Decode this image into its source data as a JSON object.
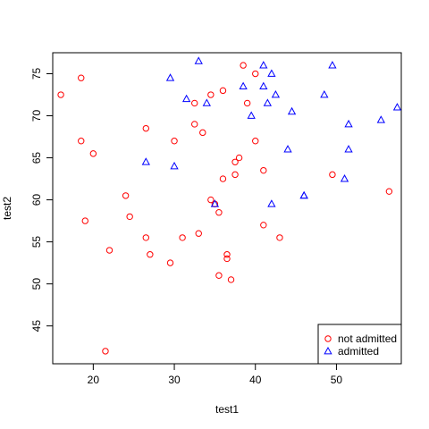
{
  "chart_data": {
    "type": "scatter",
    "title": "",
    "xlabel": "test1",
    "ylabel": "test2",
    "xlim": [
      15,
      58
    ],
    "ylim": [
      40.5,
      77.5
    ],
    "xticks": [
      20,
      30,
      40,
      50
    ],
    "yticks": [
      45,
      50,
      55,
      60,
      65,
      70,
      75
    ],
    "legend": {
      "position": "bottom-right"
    },
    "series": [
      {
        "name": "not admitted",
        "marker": "circle",
        "color": "#ff0000",
        "points": [
          [
            16,
            72.5
          ],
          [
            18.5,
            74.5
          ],
          [
            18.5,
            67
          ],
          [
            20,
            65.5
          ],
          [
            19,
            57.5
          ],
          [
            21.5,
            42
          ],
          [
            22,
            54
          ],
          [
            24,
            60.5
          ],
          [
            24.5,
            58
          ],
          [
            26.5,
            68.5
          ],
          [
            26.5,
            55.5
          ],
          [
            27,
            53.5
          ],
          [
            29.5,
            52.5
          ],
          [
            30,
            67
          ],
          [
            31,
            55.5
          ],
          [
            32.5,
            71.5
          ],
          [
            32.5,
            69
          ],
          [
            33,
            56
          ],
          [
            33.5,
            68
          ],
          [
            34.5,
            72.5
          ],
          [
            34.5,
            60
          ],
          [
            35,
            59.5
          ],
          [
            35.5,
            58.5
          ],
          [
            35.5,
            51
          ],
          [
            36,
            73
          ],
          [
            36,
            62.5
          ],
          [
            36.5,
            53.5
          ],
          [
            36.5,
            53
          ],
          [
            37,
            50.5
          ],
          [
            37.5,
            64.5
          ],
          [
            37.5,
            63
          ],
          [
            38,
            65
          ],
          [
            38.5,
            76
          ],
          [
            39,
            71.5
          ],
          [
            40,
            75
          ],
          [
            40,
            67
          ],
          [
            41,
            63.5
          ],
          [
            41,
            57
          ],
          [
            43,
            55.5
          ],
          [
            49.5,
            63
          ],
          [
            56.5,
            61
          ]
        ]
      },
      {
        "name": "admitted",
        "marker": "triangle",
        "color": "#0000ff",
        "points": [
          [
            26.5,
            64.5
          ],
          [
            29.5,
            74.5
          ],
          [
            30,
            64
          ],
          [
            31.5,
            72
          ],
          [
            33,
            76.5
          ],
          [
            34,
            71.5
          ],
          [
            35,
            59.5
          ],
          [
            38.5,
            73.5
          ],
          [
            39.5,
            70
          ],
          [
            41,
            76
          ],
          [
            41,
            73.5
          ],
          [
            41.5,
            71.5
          ],
          [
            42,
            75
          ],
          [
            42,
            59.5
          ],
          [
            42.5,
            72.5
          ],
          [
            44,
            66
          ],
          [
            44.5,
            70.5
          ],
          [
            46,
            60.5
          ],
          [
            46,
            60.5
          ],
          [
            48.5,
            72.5
          ],
          [
            49.5,
            76
          ],
          [
            51,
            62.5
          ],
          [
            51.5,
            69
          ],
          [
            51.5,
            66
          ],
          [
            55.5,
            69.5
          ],
          [
            57.5,
            71
          ]
        ]
      }
    ]
  }
}
